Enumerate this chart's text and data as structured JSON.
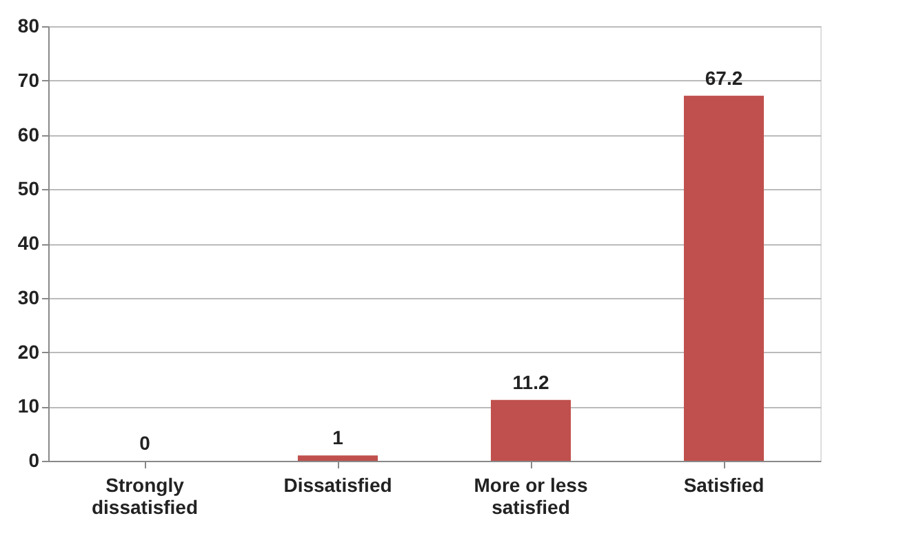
{
  "chart_data": {
    "type": "bar",
    "categories": [
      "Strongly dissatisfied",
      "Dissatisfied",
      "More or less satisfied",
      "Satisfied"
    ],
    "values": [
      0,
      1,
      11.2,
      67.2
    ],
    "color": "#c0504d",
    "ylim": [
      0,
      80
    ],
    "yticks": [
      0,
      10,
      20,
      30,
      40,
      50,
      60,
      70,
      80
    ],
    "grid": "y",
    "data_labels": true
  }
}
